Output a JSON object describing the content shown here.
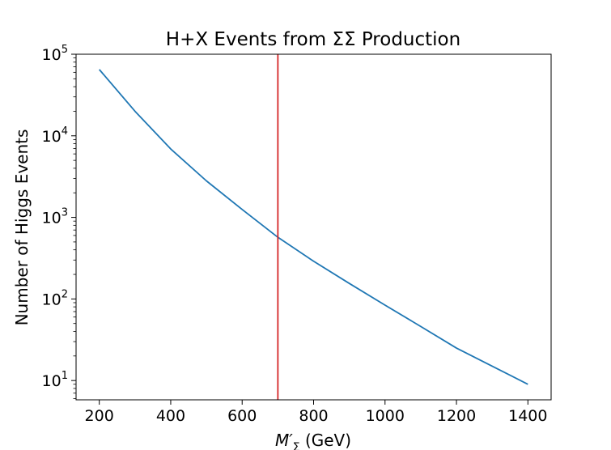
{
  "chart_data": {
    "type": "line",
    "title": "H+X Events from ΣΣ̄ Production",
    "xlabel": "M′Σ (GeV)",
    "xlabel_parts": {
      "symbol": "M′",
      "subscript": "Σ",
      "unit": " (GeV)"
    },
    "ylabel": "Number of Higgs Events",
    "y_scale": "log",
    "xlim": [
      135,
      1465
    ],
    "ylim": [
      5.8,
      100000
    ],
    "x_ticks": [
      200,
      400,
      600,
      800,
      1000,
      1200,
      1400
    ],
    "y_ticks": [
      {
        "value": 10,
        "base": "10",
        "exp": "1"
      },
      {
        "value": 100,
        "base": "10",
        "exp": "2"
      },
      {
        "value": 1000,
        "base": "10",
        "exp": "3"
      },
      {
        "value": 10000,
        "base": "10",
        "exp": "4"
      },
      {
        "value": 100000,
        "base": "10",
        "exp": "5"
      }
    ],
    "grid": false,
    "series": [
      {
        "color": "#1f77b4",
        "x": [
          200,
          300,
          400,
          500,
          600,
          700,
          800,
          900,
          1000,
          1100,
          1200,
          1300,
          1400
        ],
        "y": [
          65000,
          20000,
          6900,
          2800,
          1250,
          570,
          290,
          155,
          84,
          46,
          25,
          15,
          9
        ]
      }
    ],
    "vlines": [
      {
        "x": 700,
        "color": "#d62728"
      }
    ]
  }
}
